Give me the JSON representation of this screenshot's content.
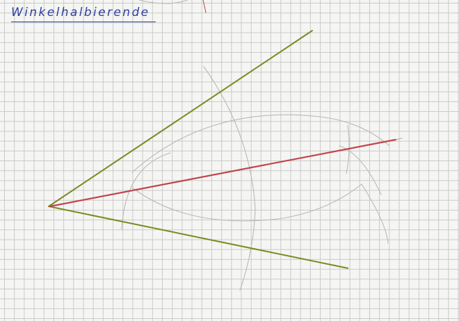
{
  "title": "Winkelhalbierende",
  "colors": {
    "title_ink": "#2f3fa0",
    "angle_legs": "#7a8a1e",
    "bisector": "#c0444a",
    "construction_arcs": "#b9b9b4",
    "grid": "#c9c9c9"
  }
}
